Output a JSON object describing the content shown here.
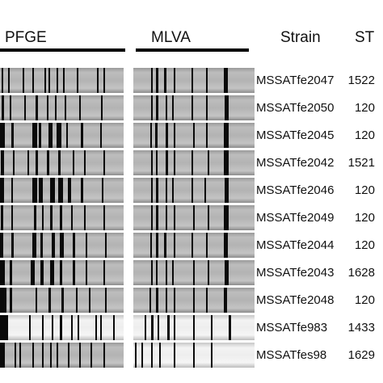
{
  "headers": {
    "pfge": "PFGE",
    "mlva": "MLVA",
    "strain": "Strain",
    "st": "ST"
  },
  "isolates": [
    {
      "strain": "MSSATfe2047",
      "st": "1522"
    },
    {
      "strain": "MSSATfe2050",
      "st": "120"
    },
    {
      "strain": "MSSATfe2045",
      "st": "120"
    },
    {
      "strain": "MSSATfe2042",
      "st": "1521"
    },
    {
      "strain": "MSSATfe2046",
      "st": "120"
    },
    {
      "strain": "MSSATfe2049",
      "st": "120"
    },
    {
      "strain": "MSSATfe2044",
      "st": "120"
    },
    {
      "strain": "MSSATfe2043",
      "st": "1628"
    },
    {
      "strain": "MSSATfe2048",
      "st": "120"
    },
    {
      "strain": "MSSATfe983",
      "st": "1433"
    },
    {
      "strain": "MSSATfes98",
      "st": "1629"
    }
  ]
}
